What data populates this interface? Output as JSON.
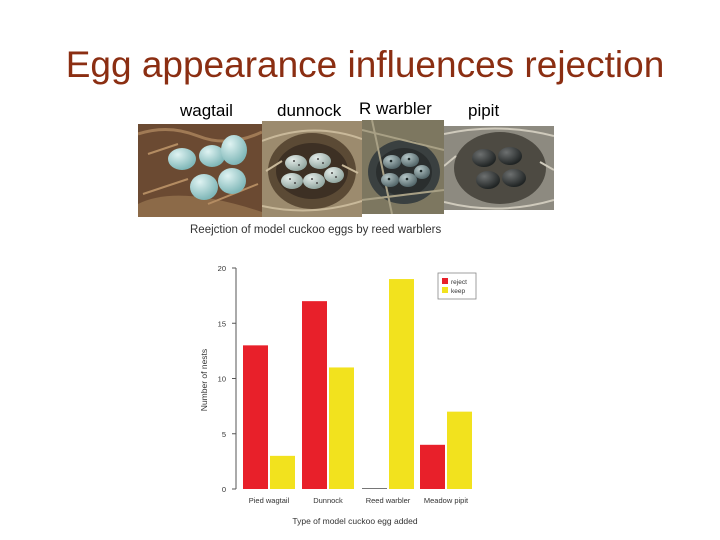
{
  "slide": {
    "title": "Egg appearance influences rejection",
    "photo_captions": [
      "wagtail",
      "dunnock",
      "R warbler",
      "pipit"
    ]
  },
  "chart_data": {
    "type": "bar",
    "title": "Reejction of model cuckoo eggs by reed warblers",
    "xlabel": "Type of model cuckoo egg added",
    "ylabel": "Number of nests",
    "categories": [
      "Pied wagtail",
      "Dunnock",
      "Reed warbler",
      "Meadow pipit"
    ],
    "series": [
      {
        "name": "reject",
        "values": [
          13,
          17,
          0,
          4
        ],
        "color": "#e8202a"
      },
      {
        "name": "keep",
        "values": [
          3,
          11,
          19,
          7
        ],
        "color": "#f2e21e"
      }
    ],
    "ylim": [
      0,
      20
    ],
    "yticks": [
      0,
      5,
      10,
      15,
      20
    ],
    "legend": "top-right",
    "grid": false
  },
  "colors": {
    "title": "#8b2e12"
  }
}
